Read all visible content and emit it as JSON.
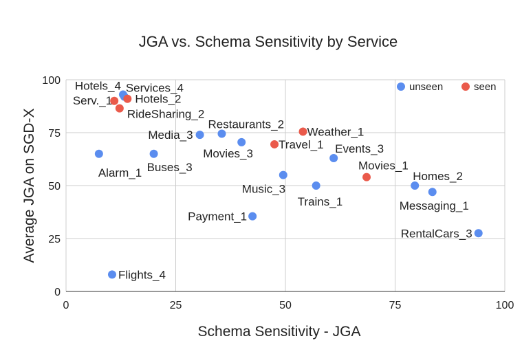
{
  "chart_data": {
    "type": "scatter",
    "title": "JGA vs. Schema Sensitivity by Service",
    "xlabel": "Schema Sensitivity - JGA",
    "ylabel": "Average JGA on SGD-X",
    "xlim": [
      0,
      100
    ],
    "ylim": [
      0,
      100
    ],
    "xticks": [
      "0",
      "25",
      "50",
      "75",
      "100"
    ],
    "yticks": [
      "0",
      "25",
      "50",
      "75",
      "100"
    ],
    "grid": true,
    "legend_position": "top-right",
    "colors": {
      "unseen": "#5b8def",
      "seen": "#ea5a4b"
    },
    "series": [
      {
        "name": "unseen",
        "color": "#5b8def",
        "points": [
          {
            "label": "Hotels_4",
            "x": 13.0,
            "y": 93.0
          },
          {
            "label": "Services_4",
            "x": 13.3,
            "y": 92.0
          },
          {
            "label": "Alarm_1",
            "x": 7.5,
            "y": 65.0
          },
          {
            "label": "Buses_3",
            "x": 20.0,
            "y": 65.0
          },
          {
            "label": "Media_3",
            "x": 30.5,
            "y": 74.0
          },
          {
            "label": "Restaurants_2",
            "x": 35.5,
            "y": 74.5
          },
          {
            "label": "Movies_3",
            "x": 40.0,
            "y": 70.5
          },
          {
            "label": "Music_3",
            "x": 49.5,
            "y": 55.0
          },
          {
            "label": "Trains_1",
            "x": 57.0,
            "y": 50.0
          },
          {
            "label": "Events_3",
            "x": 61.0,
            "y": 63.0
          },
          {
            "label": "Homes_2",
            "x": 79.5,
            "y": 50.0
          },
          {
            "label": "Messaging_1",
            "x": 83.5,
            "y": 47.0
          },
          {
            "label": "RentalCars_3",
            "x": 94.0,
            "y": 27.5
          },
          {
            "label": "Payment_1",
            "x": 42.5,
            "y": 35.5
          },
          {
            "label": "Flights_4",
            "x": 10.5,
            "y": 8.0
          }
        ]
      },
      {
        "name": "seen",
        "color": "#ea5a4b",
        "points": [
          {
            "label": "Serv._1",
            "x": 11.0,
            "y": 90.0
          },
          {
            "label": "Hotels_2",
            "x": 14.0,
            "y": 91.0
          },
          {
            "label": "RideSharing_2",
            "x": 12.2,
            "y": 86.5
          },
          {
            "label": "Weather_1",
            "x": 54.0,
            "y": 75.5
          },
          {
            "label": "Travel_1",
            "x": 47.5,
            "y": 69.5
          },
          {
            "label": "Movies_1",
            "x": 68.5,
            "y": 54.0
          }
        ]
      }
    ]
  }
}
